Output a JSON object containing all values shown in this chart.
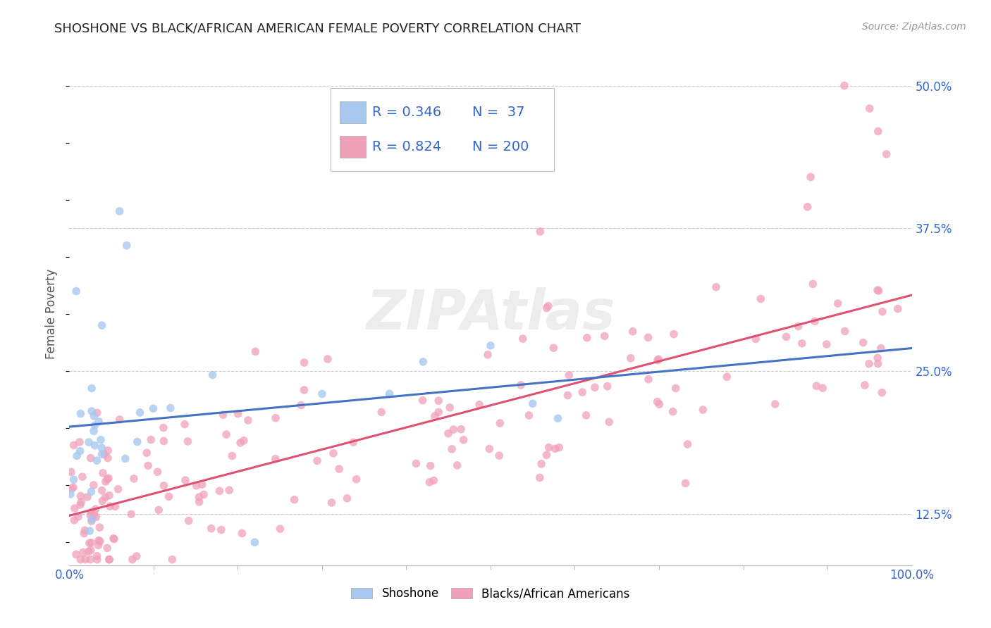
{
  "title": "SHOSHONE VS BLACK/AFRICAN AMERICAN FEMALE POVERTY CORRELATION CHART",
  "source_text": "Source: ZipAtlas.com",
  "ylabel": "Female Poverty",
  "x_min": 0.0,
  "x_max": 1.0,
  "y_min": 0.08,
  "y_max": 0.52,
  "yticks": [
    0.125,
    0.25,
    0.375,
    0.5
  ],
  "ytick_labels": [
    "12.5%",
    "25.0%",
    "37.5%",
    "50.0%"
  ],
  "legend_r1": "R = 0.346",
  "legend_n1": "N =  37",
  "legend_r2": "R = 0.824",
  "legend_n2": "N = 200",
  "color_shoshone": "#A8C8F0",
  "color_black": "#F0A0B8",
  "line_color_shoshone": "#4472C4",
  "line_color_black": "#E05070",
  "background_color": "#FFFFFF",
  "watermark_text": "ZIPAtlas",
  "title_fontsize": 13,
  "tick_fontsize": 12,
  "legend_fontsize": 14
}
